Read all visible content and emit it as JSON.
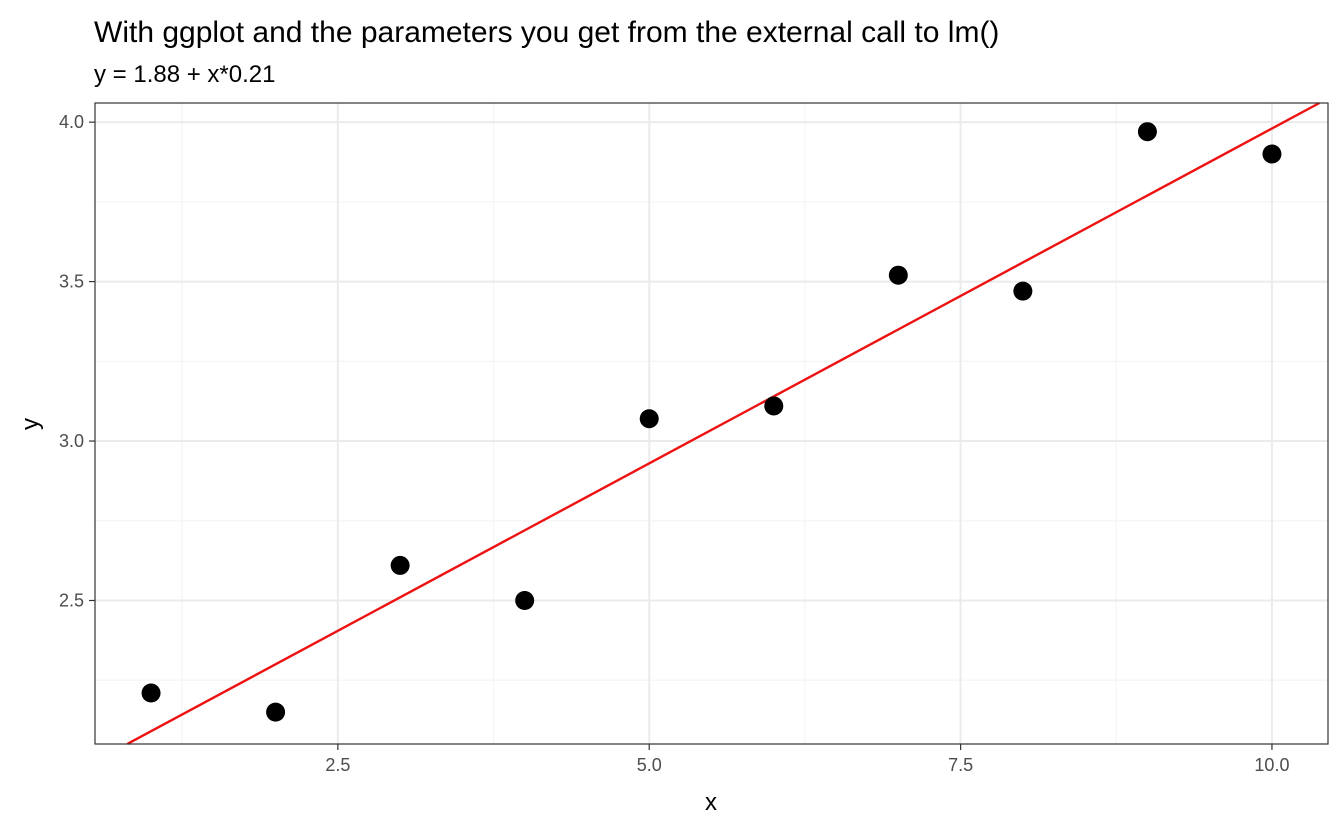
{
  "chart_data": {
    "type": "scatter",
    "title": "With ggplot and the parameters you get from the external call to lm()",
    "subtitle": "y = 1.88 + x*0.21",
    "xlabel": "x",
    "ylabel": "y",
    "xlim": [
      0.55,
      10.45
    ],
    "ylim": [
      2.05,
      4.06
    ],
    "x_ticks": [
      2.5,
      5.0,
      7.5,
      10.0
    ],
    "x_tick_labels": [
      "2.5",
      "5.0",
      "7.5",
      "10.0"
    ],
    "y_ticks": [
      2.5,
      3.0,
      3.5,
      4.0
    ],
    "y_tick_labels": [
      "2.5",
      "3.0",
      "3.5",
      "4.0"
    ],
    "x_minor_ticks": [
      1.25,
      3.75,
      6.25,
      8.75
    ],
    "y_minor_ticks": [
      2.25,
      2.75,
      3.25,
      3.75
    ],
    "grid": true,
    "points": [
      {
        "x": 1,
        "y": 2.21
      },
      {
        "x": 2,
        "y": 2.15
      },
      {
        "x": 3,
        "y": 2.61
      },
      {
        "x": 4,
        "y": 2.5
      },
      {
        "x": 5,
        "y": 3.07
      },
      {
        "x": 6,
        "y": 3.11
      },
      {
        "x": 7,
        "y": 3.52
      },
      {
        "x": 8,
        "y": 3.47
      },
      {
        "x": 9,
        "y": 3.97
      },
      {
        "x": 10,
        "y": 3.9
      }
    ],
    "fit_line": {
      "intercept": 1.88,
      "slope": 0.21
    },
    "colors": {
      "points": "#000000",
      "fit_line": "#ee1111",
      "grid_major": "#ebebeb",
      "grid_minor": "#f5f5f5",
      "panel_border": "#333333"
    }
  }
}
